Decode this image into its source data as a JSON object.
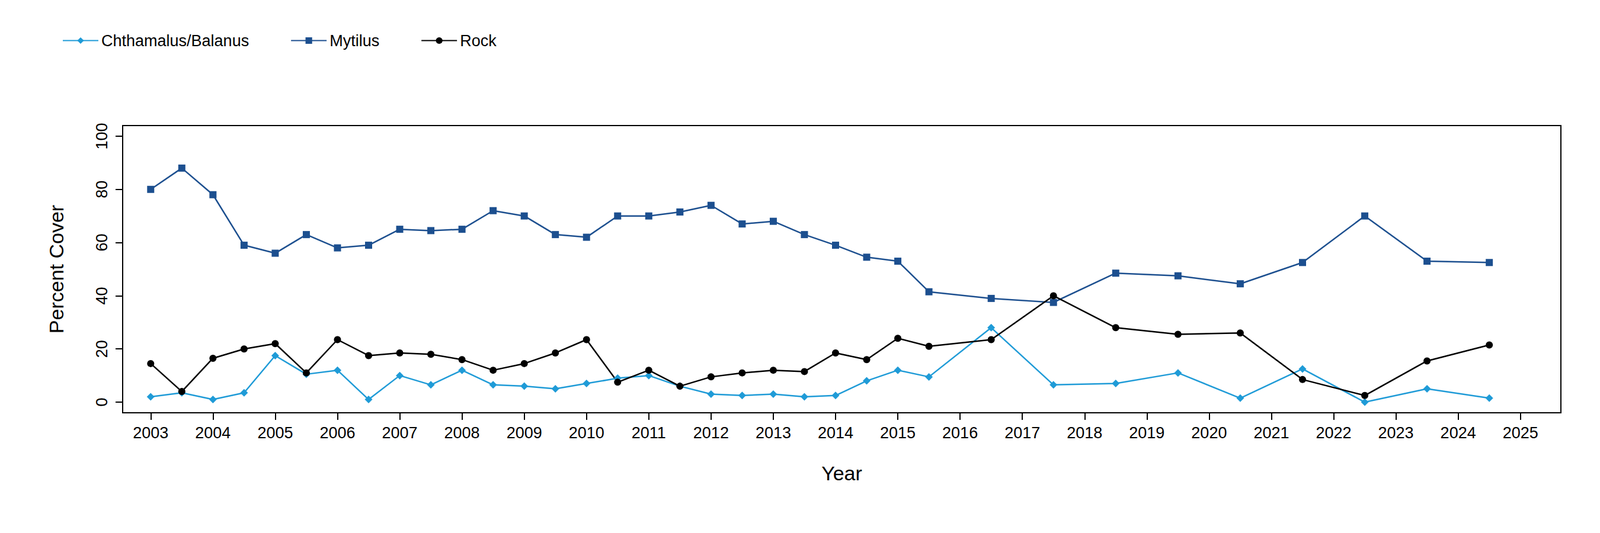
{
  "chart_data": {
    "type": "line",
    "x_label": "Year",
    "y_label": "Percent Cover",
    "x": [
      2003,
      2003.5,
      2004,
      2004.5,
      2005,
      2005.5,
      2006,
      2006.5,
      2007,
      2007.5,
      2008,
      2008.5,
      2009,
      2009.5,
      2010,
      2010.5,
      2011,
      2011.5,
      2012,
      2012.5,
      2013,
      2013.5,
      2014,
      2014.5,
      2015,
      2015.5,
      2016.5,
      2017.5,
      2018.5,
      2019.5,
      2020.5,
      2021.5,
      2022.5,
      2023.5,
      2024.5
    ],
    "series": [
      {
        "name": "Chthamalus/Balanus",
        "color": "#1f9bd7",
        "marker": "diamond",
        "line_style": "solid",
        "values": [
          2,
          3.5,
          1,
          3.5,
          17.5,
          10.5,
          12,
          1,
          10,
          6.5,
          12,
          6.5,
          6,
          5,
          7,
          9,
          10,
          6,
          3,
          2.5,
          3,
          2,
          2.5,
          8,
          12,
          9.5,
          28,
          6.5,
          7,
          11,
          1.5,
          12.5,
          0,
          5,
          1.5
        ]
      },
      {
        "name": "Mytilus",
        "color": "#1c4f8f",
        "marker": "square",
        "line_style": "solid",
        "values": [
          80,
          88,
          78,
          59,
          56,
          63,
          58,
          59,
          65,
          64.5,
          65,
          72,
          70,
          63,
          62,
          70,
          70,
          71.5,
          74,
          67,
          68,
          63,
          59,
          54.5,
          53,
          41.5,
          39,
          37.5,
          48.5,
          47.5,
          44.5,
          52.5,
          70,
          53,
          52.5
        ]
      },
      {
        "name": "Rock",
        "color": "#000000",
        "marker": "circle",
        "line_style": "solid",
        "values": [
          14.5,
          4,
          16.5,
          20,
          22,
          11,
          23.5,
          17.5,
          18.5,
          18,
          16,
          12,
          14.5,
          18.5,
          23.5,
          7.5,
          12,
          6,
          9.5,
          11,
          12,
          11.5,
          18.5,
          16,
          24,
          21,
          23.5,
          40,
          28,
          25.5,
          26,
          8.5,
          2.5,
          15.5,
          21.5
        ]
      }
    ],
    "xlim": [
      2002.55,
      2025.65
    ],
    "xticks": [
      2003,
      2004,
      2005,
      2006,
      2007,
      2008,
      2009,
      2010,
      2011,
      2012,
      2013,
      2014,
      2015,
      2016,
      2017,
      2018,
      2019,
      2020,
      2021,
      2022,
      2023,
      2024,
      2025
    ],
    "ylim": [
      -4,
      104
    ],
    "yticks": [
      0,
      20,
      40,
      60,
      80,
      100
    ],
    "grid": false,
    "legend": "top-left"
  }
}
